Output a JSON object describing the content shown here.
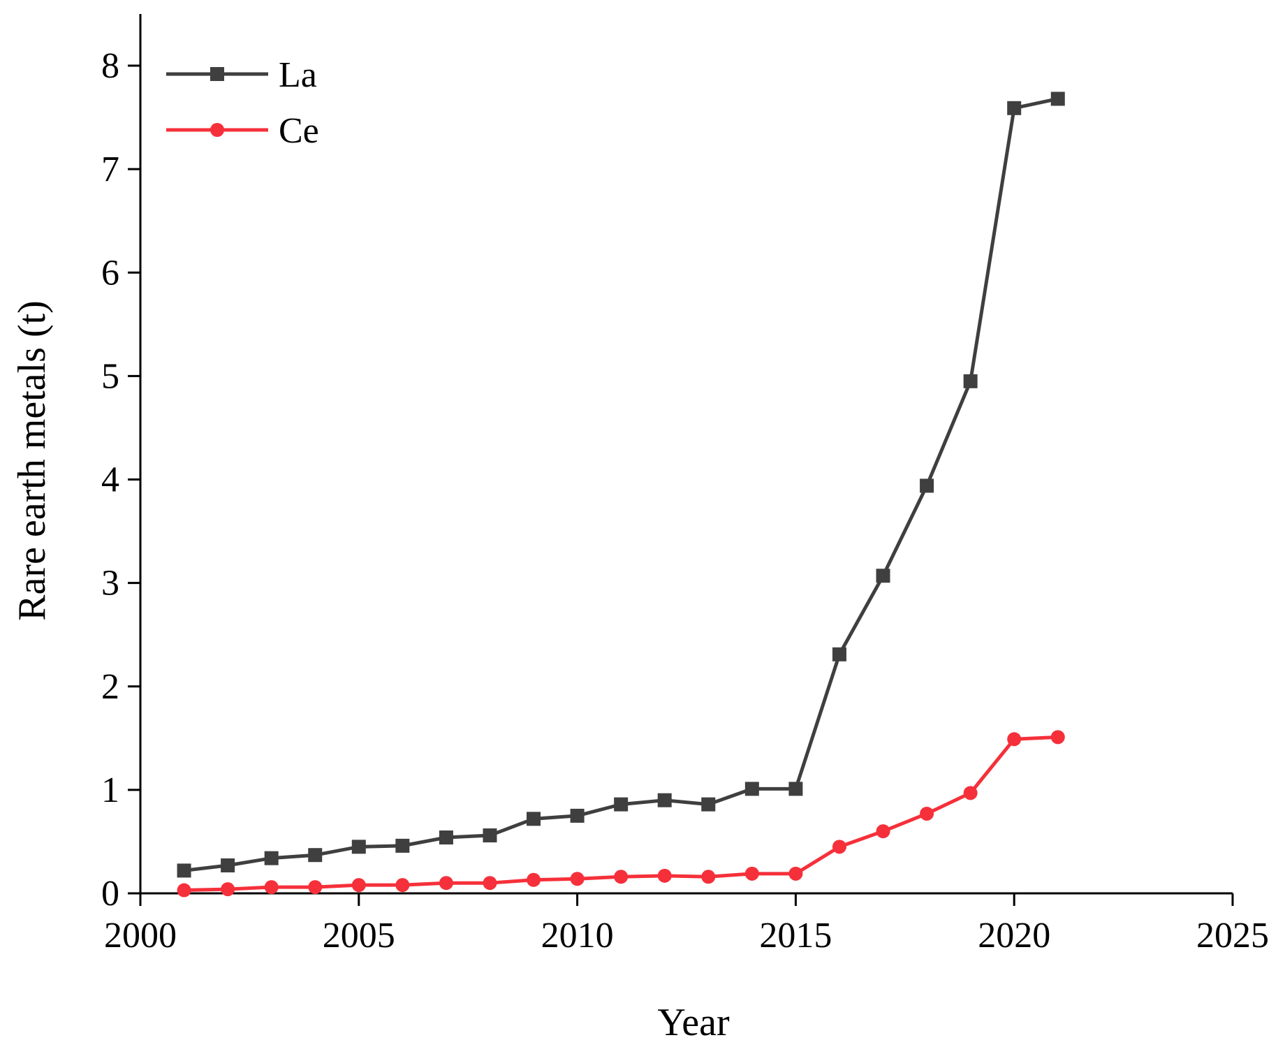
{
  "chart_data": {
    "type": "line",
    "title": "",
    "xlabel": "Year",
    "ylabel": "Rare earth metals (t)",
    "xlim": [
      2000,
      2025
    ],
    "ylim": [
      0,
      8.5
    ],
    "xticks": [
      2000,
      2005,
      2010,
      2015,
      2020,
      2025
    ],
    "yticks": [
      0,
      1,
      2,
      3,
      4,
      5,
      6,
      7,
      8
    ],
    "grid": false,
    "legend_position": "top-left",
    "x": [
      2001,
      2002,
      2003,
      2004,
      2005,
      2006,
      2007,
      2008,
      2009,
      2010,
      2011,
      2012,
      2013,
      2014,
      2015,
      2016,
      2017,
      2018,
      2019,
      2020,
      2021
    ],
    "series": [
      {
        "name": "La",
        "color": "#3f3f3f",
        "marker": "square",
        "values": [
          0.22,
          0.27,
          0.34,
          0.37,
          0.45,
          0.46,
          0.54,
          0.56,
          0.72,
          0.75,
          0.86,
          0.9,
          0.86,
          1.01,
          1.01,
          2.31,
          3.07,
          3.94,
          4.95,
          7.59,
          7.68
        ]
      },
      {
        "name": "Ce",
        "color": "#f5303a",
        "marker": "circle",
        "values": [
          0.03,
          0.04,
          0.06,
          0.06,
          0.08,
          0.08,
          0.1,
          0.1,
          0.13,
          0.14,
          0.16,
          0.17,
          0.16,
          0.19,
          0.19,
          0.45,
          0.6,
          0.77,
          0.97,
          1.49,
          1.51
        ]
      }
    ]
  }
}
